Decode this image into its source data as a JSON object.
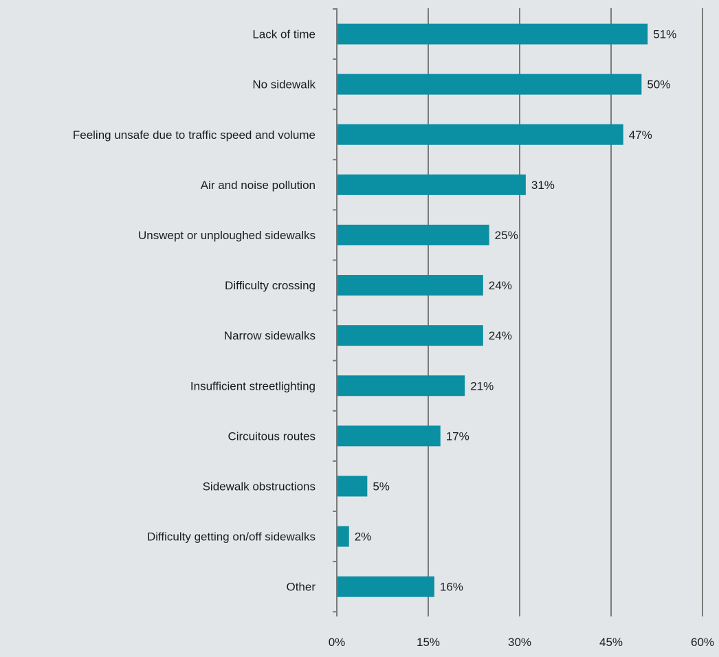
{
  "chart_data": {
    "type": "bar",
    "orientation": "horizontal",
    "categories": [
      "Lack of time",
      "No sidewalk",
      "Feeling unsafe due to traffic speed and volume",
      "Air and noise pollution",
      "Unswept or unploughed sidewalks",
      "Difficulty crossing",
      "Narrow sidewalks",
      "Insufficient streetlighting",
      "Circuitous routes",
      "Sidewalk obstructions",
      "Difficulty getting on/off sidewalks",
      "Other"
    ],
    "values": [
      51,
      50,
      47,
      31,
      25,
      24,
      24,
      21,
      17,
      5,
      2,
      16
    ],
    "data_labels": [
      "51%",
      "50%",
      "47%",
      "31%",
      "25%",
      "24%",
      "24%",
      "21%",
      "17%",
      "5%",
      "2%",
      "16%"
    ],
    "x_ticks": [
      0,
      15,
      30,
      45,
      60
    ],
    "x_tick_labels": [
      "0%",
      "15%",
      "30%",
      "45%",
      "60%"
    ],
    "xlim": [
      0,
      60
    ],
    "grid": true,
    "legend": "none",
    "title": "",
    "xlabel": "",
    "ylabel": "",
    "colors": {
      "bar": "#0b8fa3",
      "background": "#e3e6e9",
      "gridline": "#7a7a7a",
      "axis": "#7a7a7a",
      "text": "#1a1a1a"
    }
  }
}
